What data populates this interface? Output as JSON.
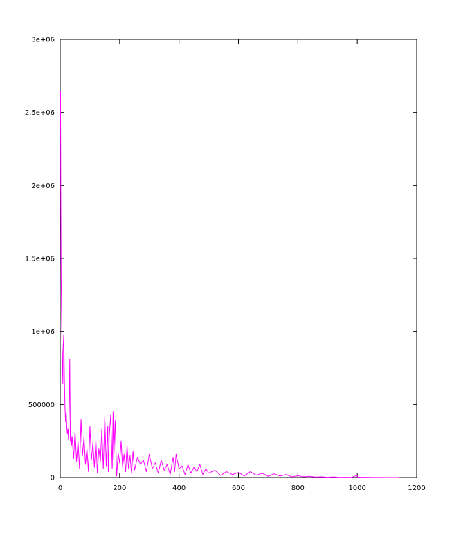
{
  "chart_data": {
    "type": "line",
    "title": "",
    "xlabel": "",
    "ylabel": "",
    "xlim": [
      0,
      1200
    ],
    "ylim": [
      0,
      3000000
    ],
    "grid": false,
    "legend": "none",
    "x_ticks": [
      {
        "value": 0,
        "label": "0"
      },
      {
        "value": 200,
        "label": "200"
      },
      {
        "value": 400,
        "label": "400"
      },
      {
        "value": 600,
        "label": "600"
      },
      {
        "value": 800,
        "label": "800"
      },
      {
        "value": 1000,
        "label": "1000"
      },
      {
        "value": 1200,
        "label": "1200"
      }
    ],
    "y_ticks": [
      {
        "value": 0,
        "label": "0"
      },
      {
        "value": 500000,
        "label": "500000"
      },
      {
        "value": 1000000,
        "label": "1e+06"
      },
      {
        "value": 1500000,
        "label": "1.5e+06"
      },
      {
        "value": 2000000,
        "label": "2e+06"
      },
      {
        "value": 2500000,
        "label": "2.5e+06"
      },
      {
        "value": 3000000,
        "label": "3e+06"
      }
    ],
    "series": [
      {
        "color": "#ff00ff",
        "x": [
          0,
          1,
          2,
          3,
          4,
          5,
          6,
          7,
          8,
          9,
          10,
          12,
          14,
          16,
          18,
          20,
          22,
          24,
          26,
          28,
          30,
          32,
          34,
          36,
          38,
          40,
          45,
          50,
          55,
          60,
          65,
          70,
          75,
          80,
          85,
          90,
          95,
          100,
          105,
          110,
          115,
          120,
          125,
          130,
          135,
          140,
          145,
          150,
          155,
          160,
          162,
          165,
          170,
          175,
          178,
          180,
          185,
          190,
          195,
          200,
          205,
          210,
          215,
          220,
          225,
          230,
          235,
          240,
          245,
          250,
          260,
          270,
          280,
          290,
          300,
          310,
          320,
          330,
          340,
          350,
          360,
          370,
          380,
          385,
          390,
          400,
          410,
          420,
          430,
          440,
          450,
          460,
          470,
          480,
          490,
          500,
          520,
          540,
          560,
          580,
          600,
          620,
          640,
          660,
          680,
          700,
          720,
          740,
          760,
          780,
          800,
          820,
          840,
          860,
          880,
          900,
          920,
          940,
          960,
          980,
          1000,
          1001,
          1020,
          1040,
          1060,
          1080,
          1100,
          1120,
          1140
        ],
        "y": [
          2400000,
          2650000,
          1900000,
          1400000,
          1200000,
          1050000,
          900000,
          850000,
          720000,
          640000,
          900000,
          980000,
          680000,
          480000,
          380000,
          450000,
          350000,
          300000,
          330000,
          260000,
          480000,
          810000,
          250000,
          300000,
          220000,
          280000,
          130000,
          320000,
          110000,
          250000,
          60000,
          400000,
          150000,
          280000,
          90000,
          200000,
          40000,
          350000,
          120000,
          240000,
          70000,
          260000,
          30000,
          200000,
          110000,
          330000,
          60000,
          420000,
          80000,
          350000,
          40000,
          280000,
          430000,
          60000,
          450000,
          120000,
          390000,
          10000,
          170000,
          100000,
          250000,
          70000,
          160000,
          40000,
          220000,
          60000,
          150000,
          30000,
          180000,
          50000,
          140000,
          90000,
          120000,
          40000,
          160000,
          60000,
          100000,
          30000,
          120000,
          50000,
          90000,
          20000,
          140000,
          40000,
          160000,
          60000,
          80000,
          20000,
          90000,
          30000,
          70000,
          40000,
          90000,
          20000,
          60000,
          30000,
          50000,
          15000,
          40000,
          20000,
          35000,
          10000,
          40000,
          15000,
          30000,
          8000,
          25000,
          10000,
          20000,
          5000,
          12000,
          5000,
          8000,
          3000,
          5000,
          2000,
          4000,
          1000,
          2000,
          1000,
          15000,
          2000,
          1500,
          1000,
          800,
          500,
          300,
          200,
          100
        ]
      }
    ]
  }
}
